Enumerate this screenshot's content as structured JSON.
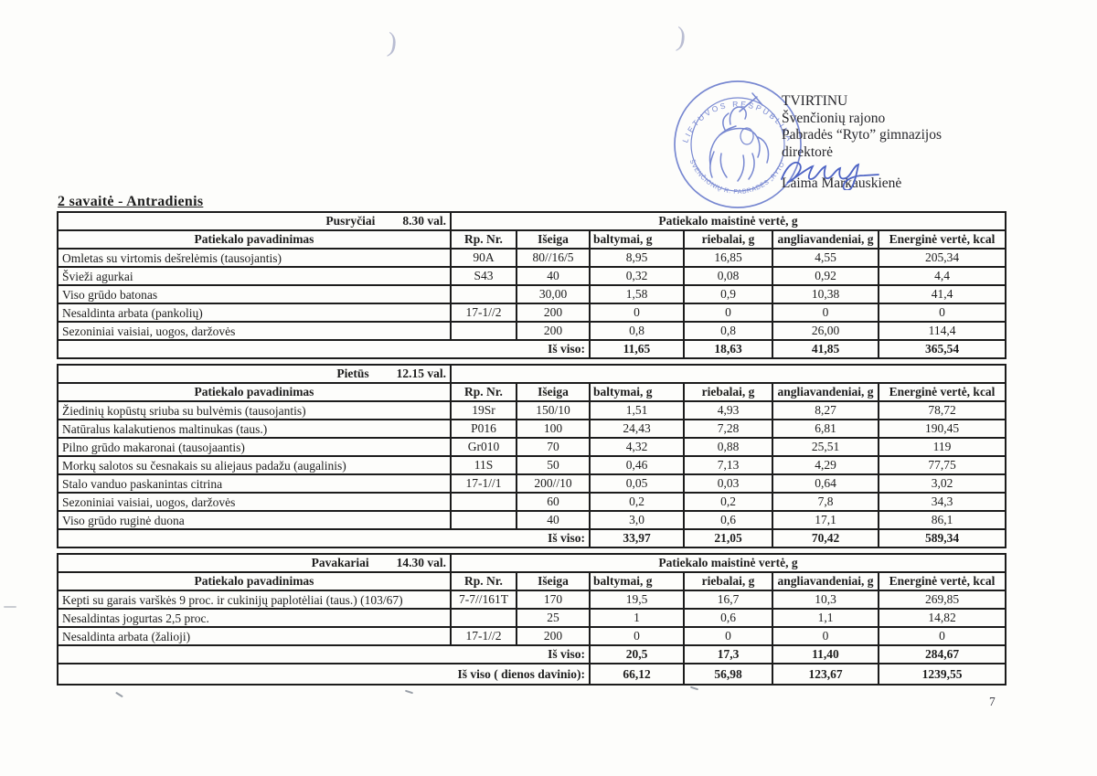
{
  "page": {
    "title": "2 savaitė - Antradienis",
    "page_number": "7",
    "scan_artifact": ")"
  },
  "approval": {
    "lines": [
      "TVIRTINU",
      "Švenčionių rajono",
      "Pabradės “Ryto” gimnazijos",
      "direktorė"
    ],
    "signer": "Laima Markauskienė",
    "stamp": {
      "arc_top": "LIETUVOS RESPUBLIKA",
      "arc_bottom": "ŠVENČIONIŲ R. PABRADĖS „RYTO“",
      "color": "#5b6fc8"
    }
  },
  "table_columns": {
    "name": "Patiekalo pavadinimas",
    "rp": "Rp. Nr.",
    "iseiga": "Išeiga",
    "baltymai": "baltymai, g",
    "riebalai": "riebalai, g",
    "angliavandeniai": "angliavandeniai, g",
    "energine": "Energinė vertė, kcal"
  },
  "meals": [
    {
      "name": "Pusryčiai",
      "time": "8.30 val.",
      "group_label": "Patiekalo maistinė vertė, g",
      "rows": [
        [
          "Omletas su virtomis dešrelėmis (tausojantis)",
          "90A",
          "80//16/5",
          "8,95",
          "16,85",
          "4,55",
          "205,34"
        ],
        [
          "Švieži agurkai",
          "S43",
          "40",
          "0,32",
          "0,08",
          "0,92",
          "4,4"
        ],
        [
          "Viso grūdo batonas",
          "",
          "30,00",
          "1,58",
          "0,9",
          "10,38",
          "41,4"
        ],
        [
          "Nesaldinta arbata (pankolių)",
          "17-1//2",
          "200",
          "0",
          "0",
          "0",
          "0"
        ],
        [
          "Sezoniniai vaisiai, uogos, daržovės",
          "",
          "200",
          "0,8",
          "0,8",
          "26,00",
          "114,4"
        ]
      ],
      "total_label": "Iš viso:",
      "totals": [
        "11,65",
        "18,63",
        "41,85",
        "365,54"
      ]
    },
    {
      "name": "Pietūs",
      "time": "12.15 val.",
      "group_label": "",
      "rows": [
        [
          "Žiedinių kopūstų sriuba  su bulvėmis (tausojantis)",
          "19Sr",
          "150/10",
          "1,51",
          "4,93",
          "8,27",
          "78,72"
        ],
        [
          "Natūralus kalakutienos maltinukas  (taus.)",
          "P016",
          "100",
          "24,43",
          "7,28",
          "6,81",
          "190,45"
        ],
        [
          "Pilno grūdo makaronai (tausojaantis)",
          "Gr010",
          "70",
          "4,32",
          "0,88",
          "25,51",
          "119"
        ],
        [
          "Morkų salotos su česnakais su aliejaus padažu (augalinis)",
          "11S",
          "50",
          "0,46",
          "7,13",
          "4,29",
          "77,75"
        ],
        [
          "Stalo vanduo paskanintas citrina",
          "17-1//1",
          "200//10",
          "0,05",
          "0,03",
          "0,64",
          "3,02"
        ],
        [
          "Sezoniniai vaisiai, uogos, daržovės",
          "",
          "60",
          "0,2",
          "0,2",
          "7,8",
          "34,3"
        ],
        [
          "Viso grūdo ruginė duona",
          "",
          "40",
          "3,0",
          "0,6",
          "17,1",
          "86,1"
        ]
      ],
      "total_label": "Iš viso:",
      "totals": [
        "33,97",
        "21,05",
        "70,42",
        "589,34"
      ]
    },
    {
      "name": "Pavakariai",
      "time": "14.30 val.",
      "group_label": "Patiekalo maistinė vertė, g",
      "rows": [
        [
          "Kepti  su garais varškės 9 proc. ir cukinijų paplotėliai (taus.) (103/67)",
          "7-7//161T",
          "170",
          "19,5",
          "16,7",
          "10,3",
          "269,85"
        ],
        [
          "Nesaldintas jogurtas 2,5 proc.",
          "",
          "25",
          "1",
          "0,6",
          "1,1",
          "14,82"
        ],
        [
          "Nesaldinta arbata (žalioji)",
          "17-1//2",
          "200",
          "0",
          "0",
          "0",
          "0"
        ]
      ],
      "total_label": "Iš viso:",
      "totals": [
        "20,5",
        "17,3",
        "11,40",
        "284,67"
      ]
    }
  ],
  "grand_total": {
    "label": "Iš viso ( dienos davinio):",
    "values": [
      "66,12",
      "56,98",
      "123,67",
      "1239,55"
    ]
  }
}
